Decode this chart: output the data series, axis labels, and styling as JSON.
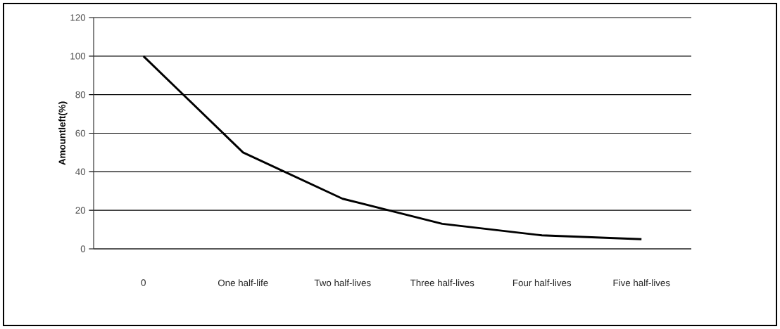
{
  "chart_data": {
    "type": "line",
    "ylabel": "Amountleft(%)",
    "categories": [
      "0",
      "One half-life",
      "Two half-lives",
      "Three half-lives",
      "Four half-lives",
      "Five half-lives"
    ],
    "values": [
      100,
      50,
      26,
      13,
      7,
      5
    ],
    "color": "#000000",
    "ylim": [
      0,
      120
    ],
    "yticks": [
      0,
      20,
      40,
      60,
      80,
      100,
      120
    ],
    "grid": "y"
  }
}
